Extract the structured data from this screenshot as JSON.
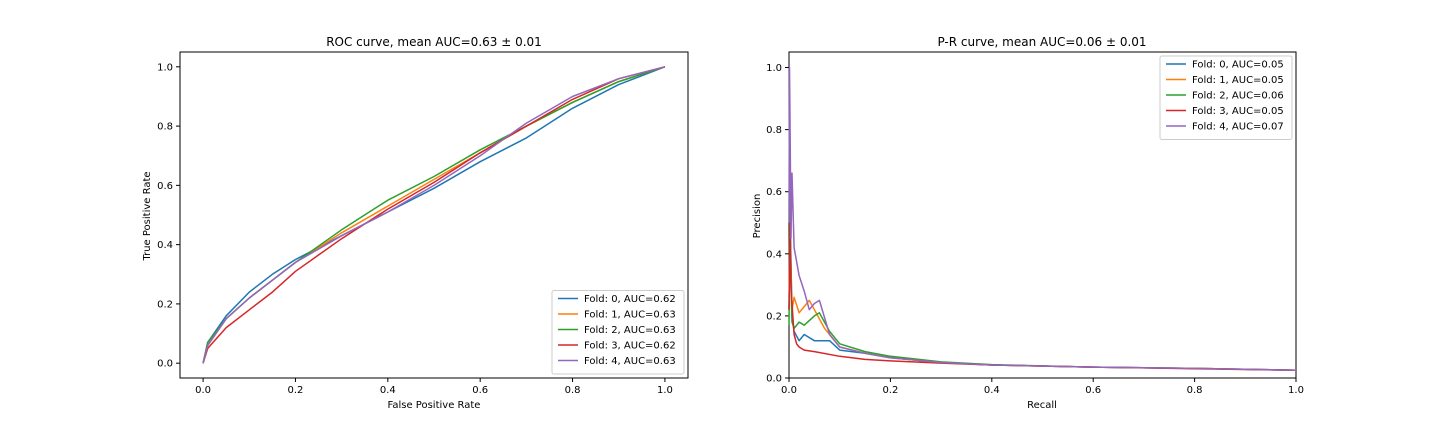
{
  "colors": [
    "#1f77b4",
    "#ff7f0e",
    "#2ca02c",
    "#d62728",
    "#9467bd"
  ],
  "chart_data": [
    {
      "type": "line",
      "title": "ROC curve, mean AUC=0.63 ± 0.01",
      "xlabel": "False Positive Rate",
      "ylabel": "True Positive Rate",
      "xlim": [
        -0.05,
        1.05
      ],
      "ylim": [
        -0.05,
        1.05
      ],
      "xticks": [
        "0.0",
        "0.2",
        "0.4",
        "0.6",
        "0.8",
        "1.0"
      ],
      "yticks": [
        "0.0",
        "0.2",
        "0.4",
        "0.6",
        "0.8",
        "1.0"
      ],
      "grid": false,
      "legend_position": "lower-right",
      "series": [
        {
          "name": "Fold: 0, AUC=0.62",
          "x": [
            0,
            0.01,
            0.05,
            0.1,
            0.15,
            0.2,
            0.3,
            0.4,
            0.5,
            0.6,
            0.7,
            0.8,
            0.9,
            1.0
          ],
          "y": [
            0,
            0.07,
            0.16,
            0.24,
            0.3,
            0.35,
            0.43,
            0.51,
            0.59,
            0.68,
            0.76,
            0.86,
            0.94,
            1.0
          ]
        },
        {
          "name": "Fold: 1, AUC=0.63",
          "x": [
            0,
            0.01,
            0.05,
            0.1,
            0.15,
            0.2,
            0.3,
            0.4,
            0.5,
            0.6,
            0.7,
            0.8,
            0.9,
            1.0
          ],
          "y": [
            0,
            0.06,
            0.15,
            0.22,
            0.28,
            0.34,
            0.44,
            0.53,
            0.62,
            0.71,
            0.8,
            0.88,
            0.95,
            1.0
          ]
        },
        {
          "name": "Fold: 2, AUC=0.63",
          "x": [
            0,
            0.01,
            0.05,
            0.1,
            0.15,
            0.2,
            0.3,
            0.4,
            0.5,
            0.6,
            0.7,
            0.8,
            0.9,
            1.0
          ],
          "y": [
            0,
            0.07,
            0.15,
            0.22,
            0.28,
            0.34,
            0.45,
            0.55,
            0.63,
            0.72,
            0.8,
            0.88,
            0.95,
            1.0
          ]
        },
        {
          "name": "Fold: 3, AUC=0.62",
          "x": [
            0,
            0.01,
            0.05,
            0.1,
            0.15,
            0.2,
            0.3,
            0.4,
            0.5,
            0.6,
            0.7,
            0.8,
            0.9,
            1.0
          ],
          "y": [
            0,
            0.05,
            0.12,
            0.18,
            0.24,
            0.31,
            0.42,
            0.52,
            0.61,
            0.71,
            0.8,
            0.89,
            0.96,
            1.0
          ]
        },
        {
          "name": "Fold: 4, AUC=0.63",
          "x": [
            0,
            0.01,
            0.05,
            0.1,
            0.15,
            0.2,
            0.3,
            0.4,
            0.5,
            0.6,
            0.7,
            0.8,
            0.9,
            1.0
          ],
          "y": [
            0,
            0.06,
            0.15,
            0.22,
            0.28,
            0.34,
            0.43,
            0.51,
            0.6,
            0.7,
            0.81,
            0.9,
            0.96,
            1.0
          ]
        }
      ]
    },
    {
      "type": "line",
      "title": "P-R curve, mean AUC=0.06 ± 0.01",
      "xlabel": "Recall",
      "ylabel": "Precision",
      "xlim": [
        0.0,
        1.0
      ],
      "ylim": [
        0.0,
        1.05
      ],
      "xticks": [
        "0.0",
        "0.2",
        "0.4",
        "0.6",
        "0.8",
        "1.0"
      ],
      "yticks": [
        "0.0",
        "0.2",
        "0.4",
        "0.6",
        "0.8",
        "1.0"
      ],
      "grid": false,
      "legend_position": "upper-right",
      "series": [
        {
          "name": "Fold: 0, AUC=0.05",
          "x": [
            0,
            0.003,
            0.006,
            0.01,
            0.02,
            0.03,
            0.05,
            0.08,
            0.1,
            0.15,
            0.2,
            0.3,
            0.4,
            0.6,
            0.8,
            1.0
          ],
          "y": [
            0.22,
            0.45,
            0.2,
            0.15,
            0.12,
            0.14,
            0.12,
            0.12,
            0.09,
            0.08,
            0.065,
            0.05,
            0.042,
            0.035,
            0.031,
            0.025
          ]
        },
        {
          "name": "Fold: 1, AUC=0.05",
          "x": [
            0,
            0.003,
            0.006,
            0.01,
            0.02,
            0.03,
            0.04,
            0.05,
            0.07,
            0.1,
            0.15,
            0.2,
            0.3,
            0.4,
            0.6,
            0.8,
            1.0
          ],
          "y": [
            0.26,
            0.42,
            0.22,
            0.26,
            0.21,
            0.23,
            0.25,
            0.22,
            0.16,
            0.1,
            0.08,
            0.065,
            0.05,
            0.042,
            0.035,
            0.031,
            0.025
          ]
        },
        {
          "name": "Fold: 2, AUC=0.06",
          "x": [
            0,
            0.002,
            0.004,
            0.006,
            0.01,
            0.02,
            0.03,
            0.05,
            0.06,
            0.08,
            0.1,
            0.15,
            0.2,
            0.3,
            0.4,
            0.6,
            0.8,
            1.0
          ],
          "y": [
            0.17,
            0.6,
            0.3,
            0.18,
            0.16,
            0.18,
            0.17,
            0.2,
            0.21,
            0.15,
            0.11,
            0.085,
            0.07,
            0.052,
            0.043,
            0.035,
            0.031,
            0.025
          ]
        },
        {
          "name": "Fold: 3, AUC=0.05",
          "x": [
            0,
            0.002,
            0.004,
            0.006,
            0.01,
            0.015,
            0.02,
            0.03,
            0.05,
            0.1,
            0.15,
            0.2,
            0.3,
            0.4,
            0.6,
            0.8,
            1.0
          ],
          "y": [
            0.22,
            0.5,
            0.3,
            0.24,
            0.14,
            0.11,
            0.1,
            0.09,
            0.085,
            0.07,
            0.06,
            0.055,
            0.048,
            0.042,
            0.035,
            0.03,
            0.025
          ]
        },
        {
          "name": "Fold: 4, AUC=0.07",
          "x": [
            0,
            0.001,
            0.002,
            0.004,
            0.006,
            0.01,
            0.02,
            0.03,
            0.04,
            0.05,
            0.06,
            0.08,
            0.1,
            0.15,
            0.2,
            0.3,
            0.4,
            0.6,
            0.8,
            1.0
          ],
          "y": [
            0.5,
            1.0,
            0.84,
            0.45,
            0.66,
            0.42,
            0.33,
            0.28,
            0.22,
            0.24,
            0.25,
            0.14,
            0.1,
            0.08,
            0.065,
            0.05,
            0.042,
            0.035,
            0.031,
            0.025
          ]
        }
      ]
    }
  ]
}
